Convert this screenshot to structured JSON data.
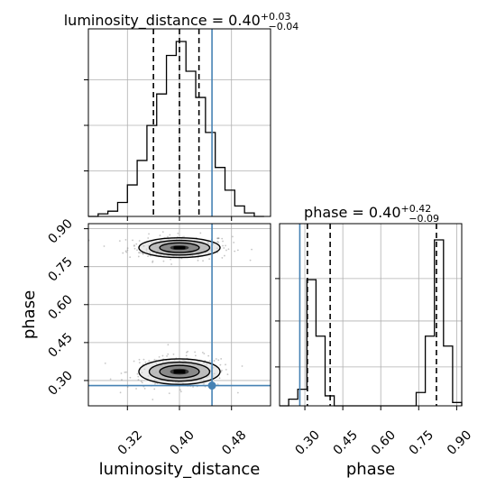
{
  "chart_data": [
    {
      "type": "histogram",
      "panel": "luminosity_distance-marginal",
      "title": {
        "name": "luminosity_distance",
        "value": "0.40",
        "plus": "+0.03",
        "minus": "−0.04"
      },
      "x_param": "luminosity_distance",
      "xlim": [
        0.26,
        0.54
      ],
      "ylim": [
        0,
        1.0
      ],
      "bins": [
        {
          "x0": 0.26,
          "x1": 0.275,
          "h": 0.0
        },
        {
          "x0": 0.275,
          "x1": 0.29,
          "h": 0.015
        },
        {
          "x0": 0.29,
          "x1": 0.305,
          "h": 0.03
        },
        {
          "x0": 0.305,
          "x1": 0.32,
          "h": 0.08
        },
        {
          "x0": 0.32,
          "x1": 0.335,
          "h": 0.18
        },
        {
          "x0": 0.335,
          "x1": 0.35,
          "h": 0.32
        },
        {
          "x0": 0.35,
          "x1": 0.365,
          "h": 0.52
        },
        {
          "x0": 0.365,
          "x1": 0.38,
          "h": 0.7
        },
        {
          "x0": 0.38,
          "x1": 0.395,
          "h": 0.92
        },
        {
          "x0": 0.395,
          "x1": 0.41,
          "h": 1.0
        },
        {
          "x0": 0.41,
          "x1": 0.425,
          "h": 0.83
        },
        {
          "x0": 0.425,
          "x1": 0.44,
          "h": 0.68
        },
        {
          "x0": 0.44,
          "x1": 0.455,
          "h": 0.48
        },
        {
          "x0": 0.455,
          "x1": 0.47,
          "h": 0.28
        },
        {
          "x0": 0.47,
          "x1": 0.485,
          "h": 0.15
        },
        {
          "x0": 0.485,
          "x1": 0.5,
          "h": 0.06
        },
        {
          "x0": 0.5,
          "x1": 0.515,
          "h": 0.02
        },
        {
          "x0": 0.515,
          "x1": 0.53,
          "h": 0.0
        }
      ],
      "quantiles": [
        0.36,
        0.4,
        0.43
      ],
      "truth": 0.45
    },
    {
      "type": "histogram",
      "panel": "phase-marginal",
      "title": {
        "name": "phase",
        "value": "0.40",
        "plus": "+0.42",
        "minus": "−0.09"
      },
      "x_param": "phase",
      "xlim": [
        0.2,
        0.92
      ],
      "ylim": [
        0,
        1.0
      ],
      "x_ticks": [
        "0.30",
        "0.45",
        "0.60",
        "0.75",
        "0.90"
      ],
      "xlabel": "phase",
      "bins": [
        {
          "x0": 0.2,
          "x1": 0.236,
          "h": 0.0
        },
        {
          "x0": 0.236,
          "x1": 0.272,
          "h": 0.04
        },
        {
          "x0": 0.272,
          "x1": 0.308,
          "h": 0.1
        },
        {
          "x0": 0.308,
          "x1": 0.344,
          "h": 0.76
        },
        {
          "x0": 0.344,
          "x1": 0.38,
          "h": 0.42
        },
        {
          "x0": 0.38,
          "x1": 0.416,
          "h": 0.06
        },
        {
          "x0": 0.416,
          "x1": 0.74,
          "h": 0.0
        },
        {
          "x0": 0.74,
          "x1": 0.776,
          "h": 0.08
        },
        {
          "x0": 0.776,
          "x1": 0.812,
          "h": 0.42
        },
        {
          "x0": 0.812,
          "x1": 0.848,
          "h": 1.0
        },
        {
          "x0": 0.848,
          "x1": 0.884,
          "h": 0.36
        },
        {
          "x0": 0.884,
          "x1": 0.92,
          "h": 0.02
        }
      ],
      "quantiles": [
        0.31,
        0.4,
        0.82
      ],
      "truth": 0.28
    },
    {
      "type": "scatter",
      "panel": "joint",
      "xlabel": "luminosity_distance",
      "ylabel": "phase",
      "xlim": [
        0.26,
        0.54
      ],
      "ylim": [
        0.2,
        0.92
      ],
      "x_ticks": [
        "0.32",
        "0.40",
        "0.48"
      ],
      "y_ticks": [
        "0.30",
        "0.45",
        "0.60",
        "0.75",
        "0.90"
      ],
      "modes": [
        {
          "x": 0.4,
          "y": 0.825,
          "sx": 0.032,
          "sy": 0.02
        },
        {
          "x": 0.4,
          "y": 0.335,
          "sx": 0.032,
          "sy": 0.026
        }
      ],
      "truth": {
        "x": 0.45,
        "y": 0.28
      }
    }
  ],
  "colors": {
    "truth": "#4682b4",
    "hist": "#000000",
    "grid": "#b0b0b0",
    "points": "#808080"
  }
}
